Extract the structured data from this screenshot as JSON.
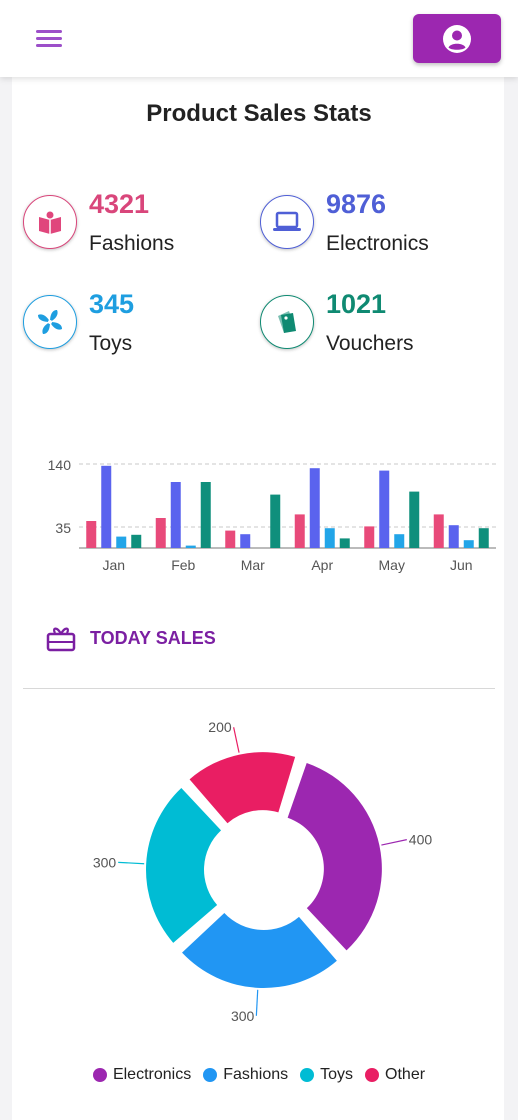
{
  "header": {
    "menu_icon": "hamburger-menu-icon",
    "user_icon": "user-account-icon"
  },
  "page_title": "Product Sales Stats",
  "stats": [
    {
      "value": "4321",
      "label": "Fashions",
      "icon": "open-book-icon",
      "color": "#d9467b"
    },
    {
      "value": "9876",
      "label": "Electronics",
      "icon": "laptop-icon",
      "color": "#4f5fd6"
    },
    {
      "value": "345",
      "label": "Toys",
      "icon": "pinwheel-icon",
      "color": "#1e9ee0"
    },
    {
      "value": "1021",
      "label": "Vouchers",
      "icon": "ticket-icon",
      "color": "#0f8a72"
    }
  ],
  "today_sales": {
    "label": "TODAY SALES",
    "icon": "gift-icon",
    "color": "#7b1fa2"
  },
  "chart_data": [
    {
      "type": "bar",
      "categories": [
        "Jan",
        "Feb",
        "Mar",
        "Apr",
        "May",
        "Jun"
      ],
      "y_ticks": [
        35,
        140
      ],
      "ylim": [
        0,
        160
      ],
      "grid": "dashed lines at tick values",
      "legend": "none",
      "series": [
        {
          "color": "#e84a7a",
          "values": [
            45,
            50,
            29,
            56,
            36,
            56
          ]
        },
        {
          "color": "#5a63ee",
          "values": [
            137,
            110,
            23,
            133,
            129,
            38
          ]
        },
        {
          "color": "#22a5e8",
          "values": [
            19,
            4,
            0,
            33,
            23,
            13
          ]
        },
        {
          "color": "#0f8f7c",
          "values": [
            22,
            110,
            89,
            16,
            94,
            33
          ]
        }
      ]
    },
    {
      "type": "pie",
      "variant": "donut",
      "categories": [
        "Electronics",
        "Fashions",
        "Toys",
        "Other"
      ],
      "values": [
        400,
        300,
        300,
        200
      ],
      "colors": [
        "#9c27b0",
        "#2196f3",
        "#00bcd4",
        "#e91e63"
      ],
      "data_labels": [
        "400",
        "300",
        "300",
        "200"
      ],
      "legend": "bottom"
    }
  ]
}
